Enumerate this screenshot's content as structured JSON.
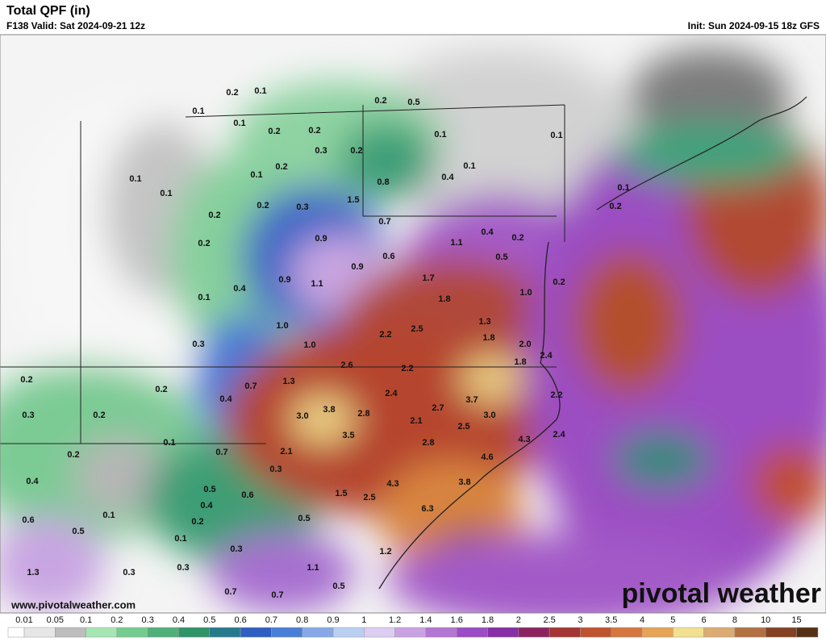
{
  "header": {
    "title": "Total QPF (in)",
    "valid": "F138 Valid: Sat 2024-09-21 12z",
    "init": "Init: Sun 2024-09-15 18z GFS"
  },
  "watermark": {
    "url": "www.pivotalweather.com",
    "logo": "pivotal weather"
  },
  "map_labels": [
    "0.2",
    "0.1",
    "0.1",
    "0.1",
    "0.2",
    "0.2",
    "0.2",
    "0.5",
    "0.1",
    "0.1",
    "0.3",
    "0.2",
    "0.2",
    "0.1",
    "0.1",
    "0.1",
    "0.1",
    "0.8",
    "0.4",
    "1.5",
    "0.2",
    "0.3",
    "0.2",
    "0.7",
    "0.1",
    "0.2",
    "0.2",
    "0.9",
    "1.1",
    "0.4",
    "0.2",
    "0.5",
    "0.9",
    "0.6",
    "0.9",
    "1.1",
    "0.4",
    "1.7",
    "0.2",
    "0.1",
    "1.8",
    "1.0",
    "1.3",
    "1.0",
    "1.0",
    "0.3",
    "2.2",
    "2.5",
    "1.8",
    "2.0",
    "2.4",
    "2.6",
    "2.2",
    "1.8",
    "0.2",
    "0.2",
    "1.3",
    "0.7",
    "0.4",
    "2.4",
    "3.7",
    "2.2",
    "0.3",
    "0.2",
    "3.8",
    "2.8",
    "2.7",
    "3.0",
    "3.0",
    "2.1",
    "2.5",
    "0.1",
    "3.5",
    "4.3",
    "2.4",
    "0.2",
    "0.7",
    "2.1",
    "2.8",
    "4.6",
    "0.3",
    "0.4",
    "4.3",
    "3.8",
    "0.5",
    "0.6",
    "1.5",
    "2.5",
    "6.3",
    "0.4",
    "0.1",
    "0.6",
    "0.2",
    "0.5",
    "0.5",
    "0.1",
    "0.3",
    "1.2",
    "0.3",
    "0.3",
    "1.3",
    "1.1",
    "0.5",
    "0.7",
    "0.7"
  ],
  "colorbar": {
    "labels": [
      0.01,
      0.05,
      0.1,
      0.2,
      0.3,
      0.4,
      0.5,
      0.6,
      0.7,
      0.8,
      0.9,
      1,
      1.2,
      1.4,
      1.6,
      1.8,
      2,
      2.5,
      3,
      3.5,
      4,
      5,
      6,
      8,
      10,
      15
    ],
    "colors": [
      "#ffffff",
      "#e6e6e6",
      "#bdbdbd",
      "#a6e6b4",
      "#74cc90",
      "#4fb07a",
      "#2f9468",
      "#277a8e",
      "#2f5fc2",
      "#4a7fd8",
      "#86a9e6",
      "#b9cff2",
      "#dccdf2",
      "#caa2e2",
      "#b476d4",
      "#9c4cc4",
      "#862ea6",
      "#8c2462",
      "#a33532",
      "#c0532f",
      "#d5763f",
      "#e6a457",
      "#f2e08e",
      "#dbab72",
      "#b27143",
      "#844222",
      "#553015"
    ]
  }
}
